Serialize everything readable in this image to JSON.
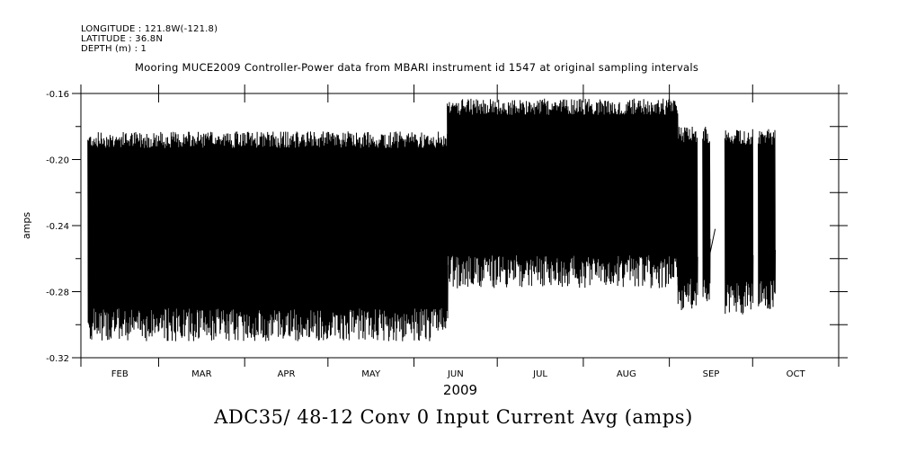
{
  "header": {
    "longitude": "LONGITUDE : 121.8W(-121.8)",
    "latitude": "LATITUDE : 36.8N",
    "depth": "DEPTH (m) : 1"
  },
  "chart_data": {
    "type": "line",
    "title": "Mooring MUCE2009 Controller-Power data from MBARI instrument id 1547 at original sampling intervals",
    "xlabel": "2009",
    "ylabel": "amps",
    "bottom_title": "ADC35/ 48-12 Conv 0 Input Current Avg (amps)",
    "ylim": [
      -0.32,
      -0.16
    ],
    "yticks": [
      -0.16,
      -0.2,
      -0.24,
      -0.28,
      -0.32
    ],
    "ytick_labels": [
      "-0.16",
      "-0.20",
      "-0.24",
      "-0.28",
      "-0.32"
    ],
    "x_unit": "days since 2009-02-01",
    "xlim": [
      0,
      273
    ],
    "month_ticks": [
      0,
      28,
      59,
      89,
      120,
      150,
      181,
      212,
      242,
      273
    ],
    "month_labels": [
      "FEB",
      "MAR",
      "APR",
      "MAY",
      "JUN",
      "JUL",
      "AUG",
      "SEP",
      "OCT"
    ],
    "segments": [
      {
        "start": 2.5,
        "end": 132,
        "upper": -0.19,
        "lower": -0.298,
        "mid_hi": -0.22,
        "mid_lo": -0.265
      },
      {
        "start": 132,
        "end": 215,
        "upper": -0.17,
        "lower": -0.266,
        "mid_hi": -0.195,
        "mid_lo": -0.235
      },
      {
        "start": 215,
        "end": 222,
        "upper": -0.187,
        "lower": -0.28,
        "mid_hi": -0.22,
        "mid_lo": -0.262
      },
      {
        "start": 224,
        "end": 226.5,
        "upper": -0.187,
        "lower": -0.278,
        "mid_hi": -0.22,
        "mid_lo": -0.25
      },
      {
        "start": 232,
        "end": 242,
        "upper": -0.188,
        "lower": -0.282,
        "mid_hi": -0.215,
        "mid_lo": -0.262
      },
      {
        "start": 244,
        "end": 250,
        "upper": -0.188,
        "lower": -0.28,
        "mid_hi": -0.22,
        "mid_lo": -0.255
      }
    ],
    "grid": false
  }
}
